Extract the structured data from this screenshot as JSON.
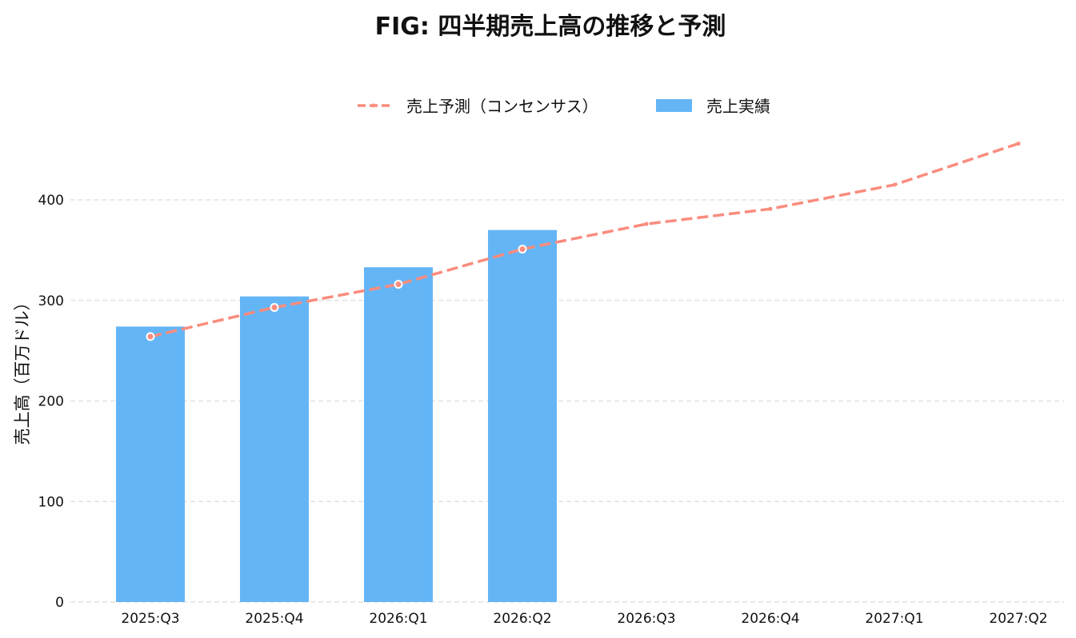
{
  "chart_data": {
    "type": "bar",
    "title": "FIG: 四半期売上高の推移と予測",
    "xlabel": "",
    "ylabel": "売上高（百万ドル）",
    "categories": [
      "2025:Q3",
      "2025:Q4",
      "2026:Q1",
      "2026:Q2",
      "2026:Q3",
      "2026:Q4",
      "2027:Q1",
      "2027:Q2"
    ],
    "ylim": [
      0,
      480
    ],
    "yticks": [
      0,
      100,
      200,
      300,
      400
    ],
    "grid": true,
    "legend_position": "top-center",
    "series": [
      {
        "name": "売上予測（コンセンサス）",
        "type": "line",
        "style": "dashed",
        "color": "#fa8c7e",
        "values": [
          264,
          293,
          316,
          351,
          376,
          391,
          415,
          456
        ]
      },
      {
        "name": "売上実績",
        "type": "bar",
        "color": "#64b5f6",
        "values": [
          274,
          304,
          333,
          370,
          null,
          null,
          null,
          null
        ]
      }
    ]
  }
}
